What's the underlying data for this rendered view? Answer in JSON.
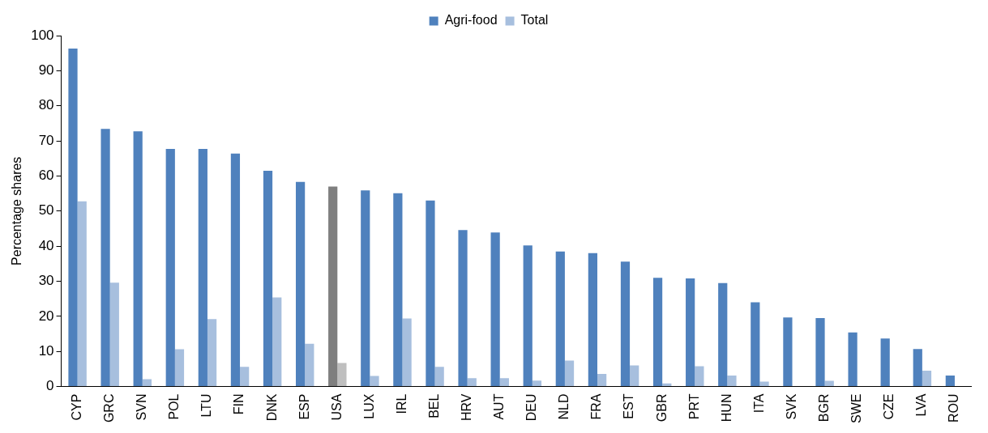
{
  "chart_data": {
    "type": "bar",
    "ylabel": "Percentage shares",
    "categories": [
      "CYP",
      "GRC",
      "SVN",
      "POL",
      "LTU",
      "FIN",
      "DNK",
      "ESP",
      "USA",
      "LUX",
      "IRL",
      "BEL",
      "HRV",
      "AUT",
      "DEU",
      "NLD",
      "FRA",
      "EST",
      "GBR",
      "PRT",
      "HUN",
      "ITA",
      "SVK",
      "BGR",
      "SWE",
      "CZE",
      "LVA",
      "ROU"
    ],
    "series": [
      {
        "name": "Agri-food",
        "color": "#4f81bd",
        "colors": [
          "#4f81bd",
          "#4f81bd",
          "#4f81bd",
          "#4f81bd",
          "#4f81bd",
          "#4f81bd",
          "#4f81bd",
          "#4f81bd",
          "#7f7f7f",
          "#4f81bd",
          "#4f81bd",
          "#4f81bd",
          "#4f81bd",
          "#4f81bd",
          "#4f81bd",
          "#4f81bd",
          "#4f81bd",
          "#4f81bd",
          "#4f81bd",
          "#4f81bd",
          "#4f81bd",
          "#4f81bd",
          "#4f81bd",
          "#4f81bd",
          "#4f81bd",
          "#4f81bd",
          "#4f81bd",
          "#4f81bd"
        ],
        "values": [
          96.3,
          73.4,
          72.7,
          67.7,
          67.7,
          66.4,
          61.5,
          58.3,
          57.0,
          55.9,
          55.1,
          53.0,
          44.6,
          43.9,
          40.2,
          38.5,
          38.0,
          35.6,
          31.0,
          30.8,
          29.5,
          24.0,
          19.7,
          19.5,
          15.4,
          13.7,
          10.7,
          3.1
        ]
      },
      {
        "name": "Total",
        "color": "#a7bfde",
        "colors": [
          "#a7bfde",
          "#a7bfde",
          "#a7bfde",
          "#a7bfde",
          "#a7bfde",
          "#a7bfde",
          "#a7bfde",
          "#a7bfde",
          "#bfbfbf",
          "#a7bfde",
          "#a7bfde",
          "#a7bfde",
          "#a7bfde",
          "#a7bfde",
          "#a7bfde",
          "#a7bfde",
          "#a7bfde",
          "#a7bfde",
          "#a7bfde",
          "#a7bfde",
          "#a7bfde",
          "#a7bfde",
          "#a7bfde",
          "#a7bfde",
          "#a7bfde",
          "#a7bfde",
          "#a7bfde",
          "#a7bfde"
        ],
        "values": [
          52.8,
          29.6,
          2.1,
          10.6,
          19.2,
          5.6,
          25.4,
          12.2,
          6.7,
          3.0,
          19.4,
          5.6,
          2.4,
          2.4,
          1.7,
          7.4,
          3.6,
          6.0,
          0.9,
          5.8,
          3.1,
          1.4,
          null,
          1.6,
          null,
          null,
          4.5,
          0
        ]
      }
    ],
    "ylim": [
      0,
      100
    ],
    "yticks": [
      0,
      10,
      20,
      30,
      40,
      50,
      60,
      70,
      80,
      90,
      100
    ],
    "grid": false,
    "legend": "top"
  }
}
